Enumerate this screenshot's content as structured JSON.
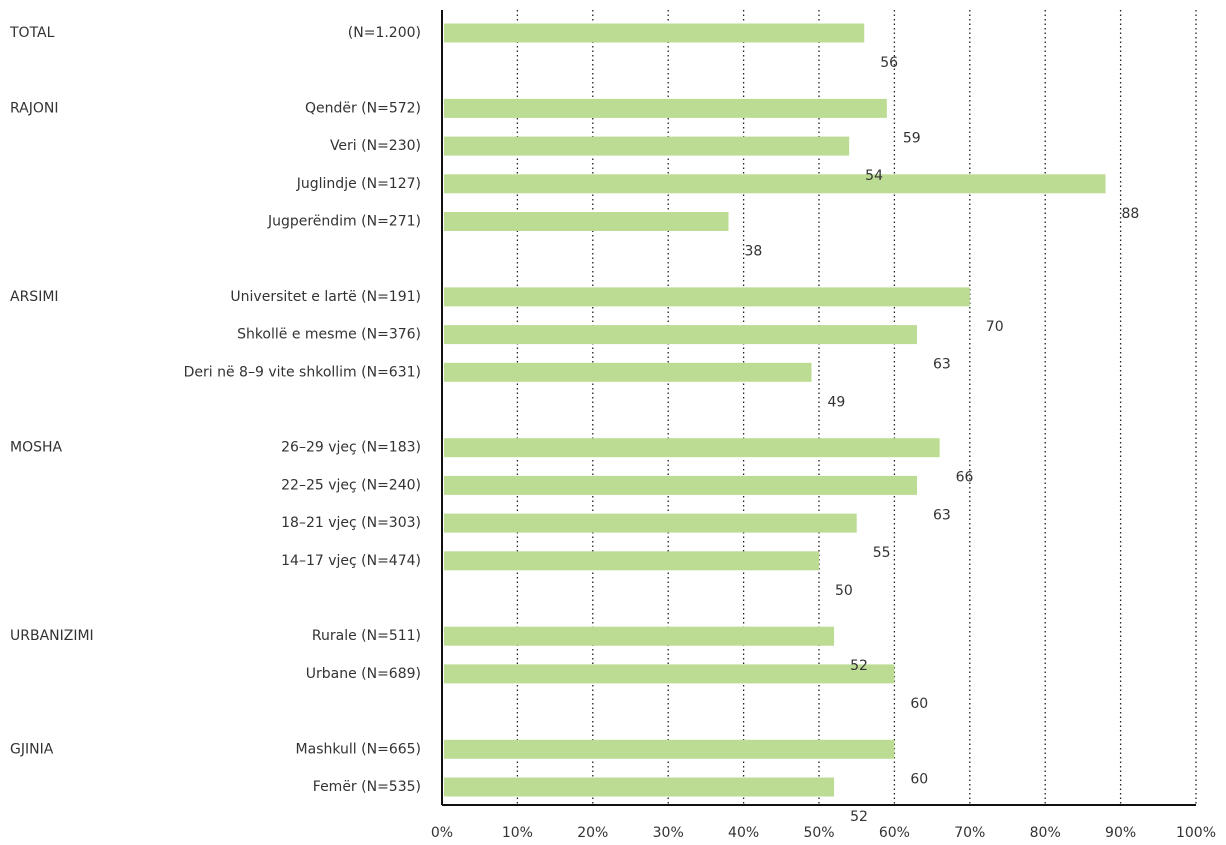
{
  "chart_data": {
    "type": "bar",
    "orientation": "horizontal",
    "title": "",
    "xlabel": "",
    "ylabel": "",
    "xlim": [
      0,
      100
    ],
    "x_ticks": [
      "0%",
      "10%",
      "20%",
      "30%",
      "40%",
      "50%",
      "60%",
      "70%",
      "80%",
      "90%",
      "100%"
    ],
    "grid": true,
    "bar_color": "#bcdc94",
    "groups": [
      {
        "name": "TOTAL",
        "items": [
          {
            "label": "(N=1.200)",
            "value": 56
          }
        ]
      },
      {
        "name": "RAJONI",
        "items": [
          {
            "label": "Qendër (N=572)",
            "value": 59
          },
          {
            "label": "Veri (N=230)",
            "value": 54
          },
          {
            "label": "Juglindje (N=127)",
            "value": 88
          },
          {
            "label": "Jugperëndim (N=271)",
            "value": 38
          }
        ]
      },
      {
        "name": "ARSIMI",
        "items": [
          {
            "label": "Universitet e lartë (N=191)",
            "value": 70
          },
          {
            "label": "Shkollë e mesme (N=376)",
            "value": 63
          },
          {
            "label": "Deri në 8–9 vite shkollim (N=631)",
            "value": 49
          }
        ]
      },
      {
        "name": "MOSHA",
        "items": [
          {
            "label": "26–29 vjeç (N=183)",
            "value": 66
          },
          {
            "label": "22–25 vjeç (N=240)",
            "value": 63
          },
          {
            "label": "18–21 vjeç (N=303)",
            "value": 55
          },
          {
            "label": "14–17 vjeç (N=474)",
            "value": 50
          }
        ]
      },
      {
        "name": "URBANIZIMI",
        "items": [
          {
            "label": "Rurale (N=511)",
            "value": 52
          },
          {
            "label": "Urbane (N=689)",
            "value": 60
          }
        ]
      },
      {
        "name": "GJINIA",
        "items": [
          {
            "label": "Mashkull (N=665)",
            "value": 60
          },
          {
            "label": "Femër (N=535)",
            "value": 52
          }
        ]
      }
    ]
  }
}
